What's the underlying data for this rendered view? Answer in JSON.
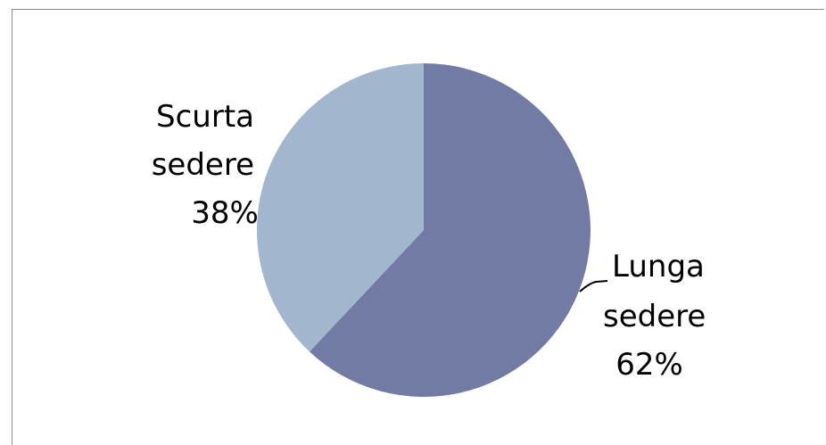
{
  "chart_data": {
    "type": "pie",
    "slices": [
      {
        "name": "Lunga sedere",
        "value": 62,
        "label_lines": [
          "Lunga",
          "sedere",
          "62%"
        ],
        "color": "#717ba3"
      },
      {
        "name": "Scurta sedere",
        "value": 38,
        "label_lines": [
          "Scurta",
          "sedere",
          "38%"
        ],
        "color": "#a2b7ce"
      }
    ],
    "start": "12 o'clock",
    "direction": "clockwise",
    "title": "",
    "legend": "none",
    "data_labels": "outside"
  }
}
